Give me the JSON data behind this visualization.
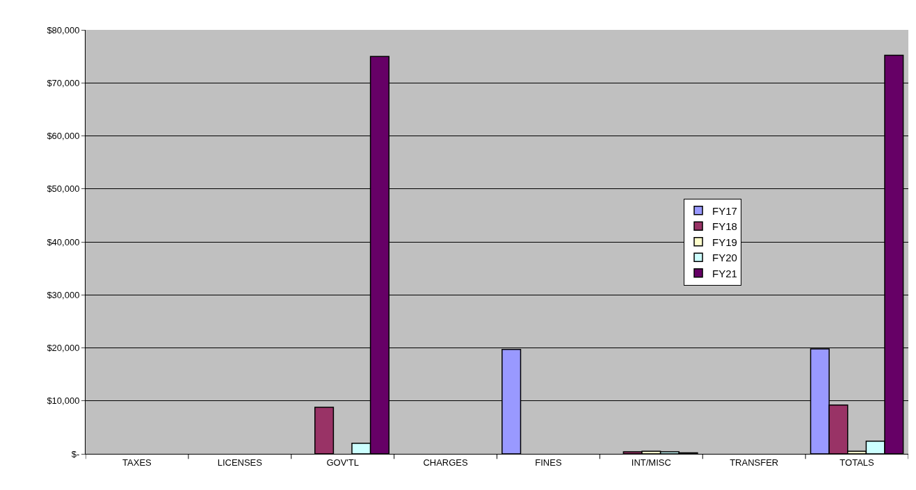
{
  "chart_data": {
    "type": "bar",
    "categories": [
      "TAXES",
      "LICENSES",
      "GOV'TL",
      "CHARGES",
      "FINES",
      "INT/MISC",
      "TRANSFER",
      "TOTALS"
    ],
    "series": [
      {
        "name": "FY17",
        "color": "#9999ff",
        "values": [
          null,
          null,
          null,
          null,
          19700,
          null,
          null,
          19800
        ]
      },
      {
        "name": "FY18",
        "color": "#993366",
        "values": [
          null,
          null,
          8800,
          null,
          null,
          400,
          null,
          9200
        ]
      },
      {
        "name": "FY19",
        "color": "#ffffcc",
        "values": [
          null,
          null,
          null,
          null,
          null,
          500,
          null,
          500
        ]
      },
      {
        "name": "FY20",
        "color": "#ccffff",
        "values": [
          null,
          null,
          2000,
          null,
          null,
          400,
          null,
          2400
        ]
      },
      {
        "name": "FY21",
        "color": "#660066",
        "values": [
          null,
          null,
          75000,
          null,
          null,
          200,
          null,
          75200
        ]
      }
    ],
    "ylim": [
      0,
      80000
    ],
    "yticks": [
      {
        "value": 0,
        "label": "$-"
      },
      {
        "value": 10000,
        "label": "$10,000"
      },
      {
        "value": 20000,
        "label": "$20,000"
      },
      {
        "value": 30000,
        "label": "$30,000"
      },
      {
        "value": 40000,
        "label": "$40,000"
      },
      {
        "value": 50000,
        "label": "$50,000"
      },
      {
        "value": 60000,
        "label": "$60,000"
      },
      {
        "value": 70000,
        "label": "$70,000"
      },
      {
        "value": 80000,
        "label": "$80,000"
      }
    ],
    "grid": "y",
    "legend": "right"
  }
}
